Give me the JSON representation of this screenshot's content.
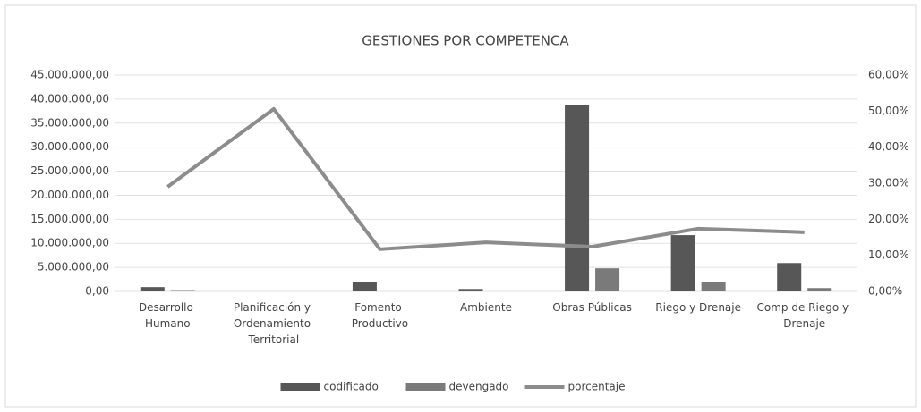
{
  "chart_data": {
    "type": "bar_line",
    "title": "GESTIONES  POR COMPETENCA",
    "categories": [
      "Desarrollo Humano",
      "Planificación y Ordenamiento Territorial",
      "Fomento Productivo",
      "Ambiente",
      "Obras Públicas",
      "Riego y Drenaje",
      "Comp de Riego y Drenaje"
    ],
    "series": [
      {
        "name": "codificado",
        "color": "#575757",
        "type": "bar",
        "values": [
          900000,
          0,
          1900000,
          500000,
          38800000,
          11700000,
          5900000
        ]
      },
      {
        "name": "devengado",
        "color": "#7a7a7a",
        "type": "bar",
        "values": [
          100000,
          0,
          0,
          0,
          4800000,
          1900000,
          700000
        ]
      },
      {
        "name": "porcentaje",
        "color": "#8c8c8c",
        "type": "line",
        "axis": "y2",
        "values": [
          29,
          50.6,
          11.7,
          13.6,
          12.4,
          17.4,
          16.4
        ]
      }
    ],
    "ylim": [
      0,
      45000000
    ],
    "yticks": [
      {
        "value": 0,
        "label": "0,00"
      },
      {
        "value": 5000000,
        "label": "5.000.000,00"
      },
      {
        "value": 10000000,
        "label": "10.000.000,00"
      },
      {
        "value": 15000000,
        "label": "15.000.000,00"
      },
      {
        "value": 20000000,
        "label": "20.000.000,00"
      },
      {
        "value": 25000000,
        "label": "25.000.000,00"
      },
      {
        "value": 30000000,
        "label": "30.000.000,00"
      },
      {
        "value": 35000000,
        "label": "35.000.000,00"
      },
      {
        "value": 40000000,
        "label": "40.000.000,00"
      },
      {
        "value": 45000000,
        "label": "45.000.000,00"
      }
    ],
    "y2lim": [
      0,
      60
    ],
    "y2ticks": [
      {
        "value": 0,
        "label": "0,00%"
      },
      {
        "value": 10,
        "label": "10,00%"
      },
      {
        "value": 20,
        "label": "20,00%"
      },
      {
        "value": 30,
        "label": "30,00%"
      },
      {
        "value": 40,
        "label": "40,00%"
      },
      {
        "value": 50,
        "label": "50,00%"
      },
      {
        "value": 60,
        "label": "60,00%"
      }
    ],
    "grid": true,
    "legend": "bottom"
  }
}
